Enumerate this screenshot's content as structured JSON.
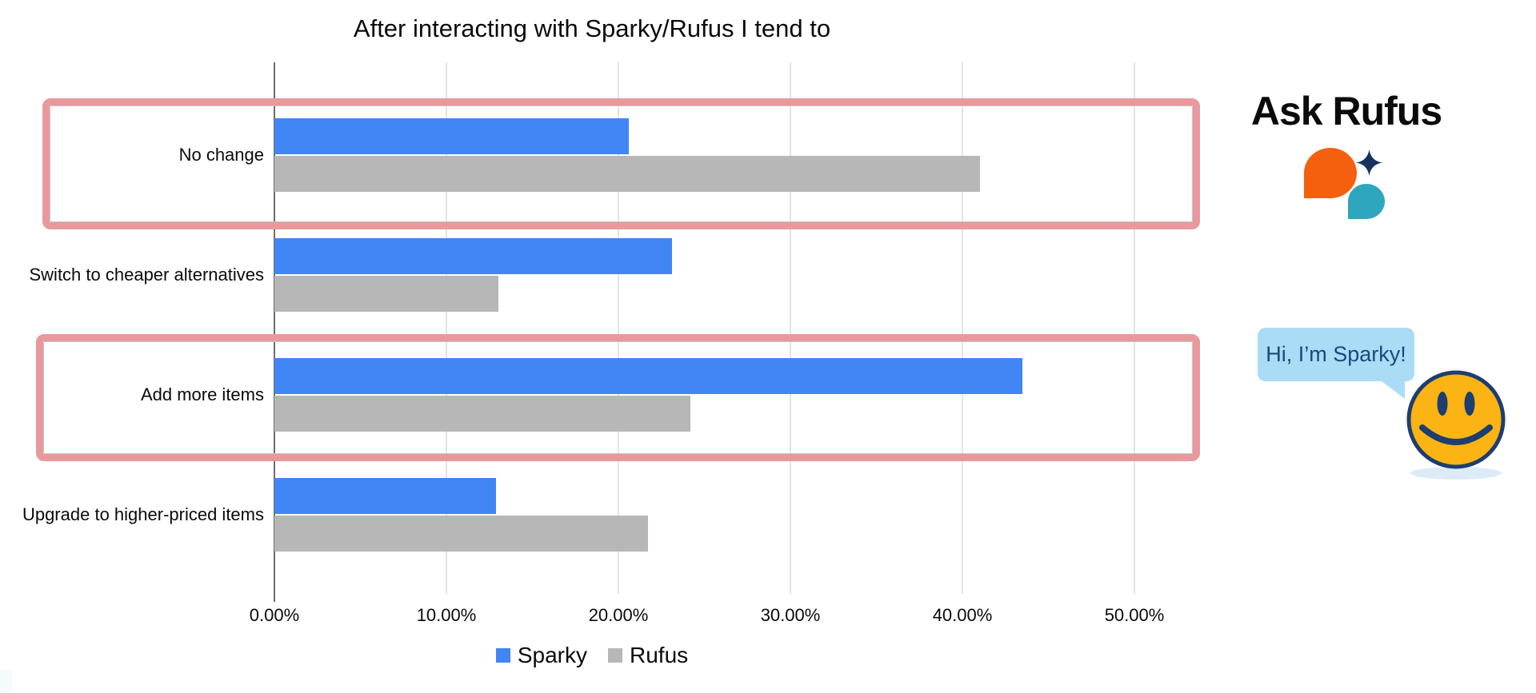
{
  "title": "After interacting with Sparky/Rufus I tend to",
  "chart_data": {
    "type": "bar",
    "orientation": "horizontal",
    "title": "After interacting with Sparky/Rufus I tend to",
    "categories": [
      "No change",
      "Switch to cheaper alternatives",
      "Add more items",
      "Upgrade to higher-priced items"
    ],
    "series": [
      {
        "name": "Sparky",
        "color": "#4285f4",
        "values": [
          20.6,
          23.1,
          43.5,
          12.9
        ]
      },
      {
        "name": "Rufus",
        "color": "#b7b7b7",
        "values": [
          41.0,
          13.0,
          24.2,
          21.7
        ]
      }
    ],
    "x_ticks": [
      "0.00%",
      "10.00%",
      "20.00%",
      "30.00%",
      "40.00%",
      "50.00%"
    ],
    "x_tick_values": [
      0,
      10,
      20,
      30,
      40,
      50
    ],
    "xlim": [
      0,
      55
    ],
    "grid": true,
    "legend_position": "bottom",
    "value_unit": "percent"
  },
  "annotations": {
    "highlight_color": "#e9999d",
    "highlighted_row_indices": [
      0,
      2
    ],
    "highlighted_rows": [
      "No change",
      "Add more items"
    ]
  },
  "branding": {
    "rufus": {
      "title": "Ask Rufus",
      "logo_colors": {
        "orange": "#f4600d",
        "teal": "#2ea6be",
        "navy": "#16325d"
      }
    },
    "sparky": {
      "bubble_text": "Hi, I’m Sparky!",
      "bubble_color": "#abdcf6",
      "text_color": "#19497c",
      "smiley_fill": "#fbb414",
      "smiley_outline": "#1d3e6e",
      "shadow_color": "#dcebf7"
    }
  }
}
